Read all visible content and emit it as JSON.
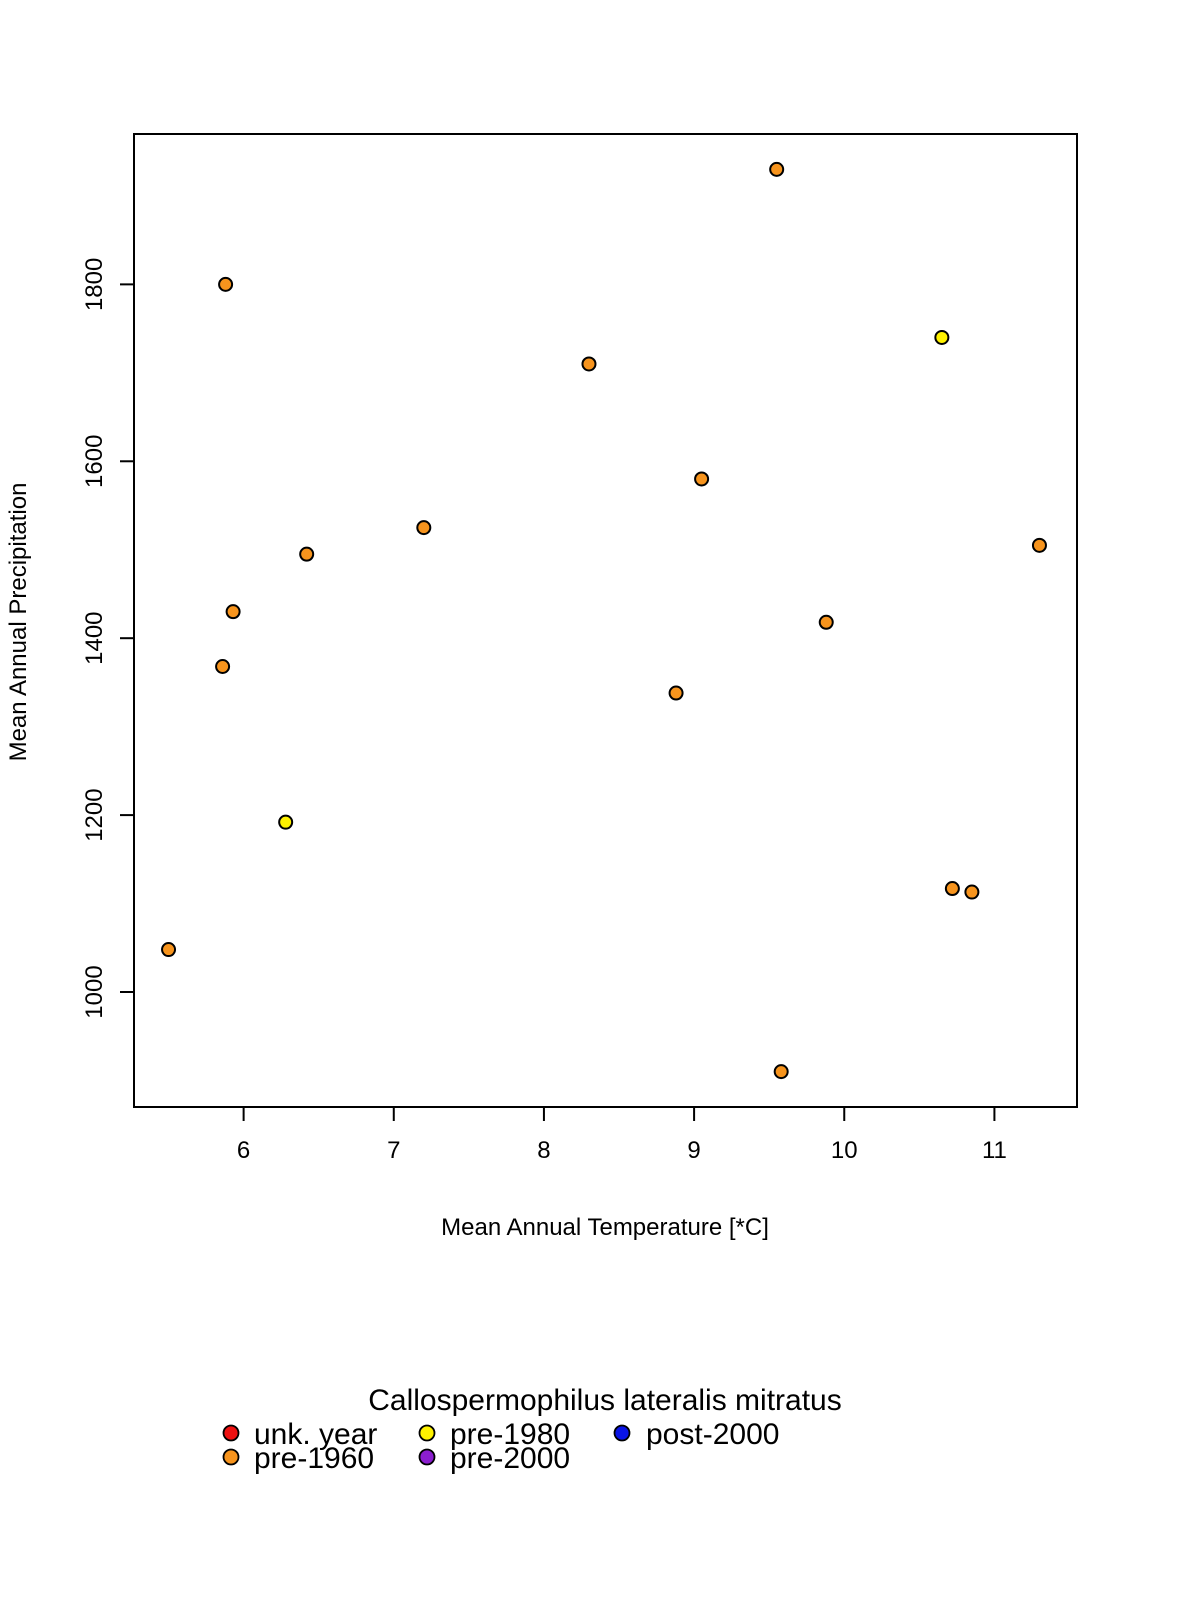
{
  "chart_data": {
    "type": "scatter",
    "title": "",
    "xlabel": "Mean Annual Temperature [*C]",
    "ylabel": "Mean Annual Precipitation",
    "xlim": [
      5.27,
      11.55
    ],
    "ylim": [
      870,
      1970
    ],
    "x_ticks": [
      6,
      7,
      8,
      9,
      10,
      11
    ],
    "y_ticks": [
      1000,
      1200,
      1400,
      1600,
      1800
    ],
    "grid": false,
    "series": [
      {
        "name": "pre-1960",
        "color": "#F7941D",
        "points": [
          {
            "x": 9.55,
            "y": 1930
          },
          {
            "x": 5.88,
            "y": 1800
          },
          {
            "x": 8.3,
            "y": 1710
          },
          {
            "x": 9.05,
            "y": 1580
          },
          {
            "x": 7.2,
            "y": 1525
          },
          {
            "x": 11.3,
            "y": 1505
          },
          {
            "x": 6.42,
            "y": 1495
          },
          {
            "x": 5.93,
            "y": 1430
          },
          {
            "x": 9.88,
            "y": 1418
          },
          {
            "x": 5.86,
            "y": 1368
          },
          {
            "x": 8.88,
            "y": 1338
          },
          {
            "x": 10.72,
            "y": 1117
          },
          {
            "x": 10.85,
            "y": 1113
          },
          {
            "x": 5.5,
            "y": 1048
          },
          {
            "x": 9.58,
            "y": 910
          }
        ]
      },
      {
        "name": "pre-1980",
        "color": "#FFF200",
        "points": [
          {
            "x": 10.65,
            "y": 1740
          },
          {
            "x": 6.28,
            "y": 1192
          }
        ]
      }
    ]
  },
  "legend": {
    "title": "Callospermophilus lateralis mitratus",
    "entries": [
      {
        "label": "unk. year",
        "color": "#EE1111"
      },
      {
        "label": "pre-1960",
        "color": "#F7941D"
      },
      {
        "label": "pre-1980",
        "color": "#FFF200"
      },
      {
        "label": "pre-2000",
        "color": "#8B1ECF"
      },
      {
        "label": "post-2000",
        "color": "#0A14E6"
      }
    ]
  }
}
